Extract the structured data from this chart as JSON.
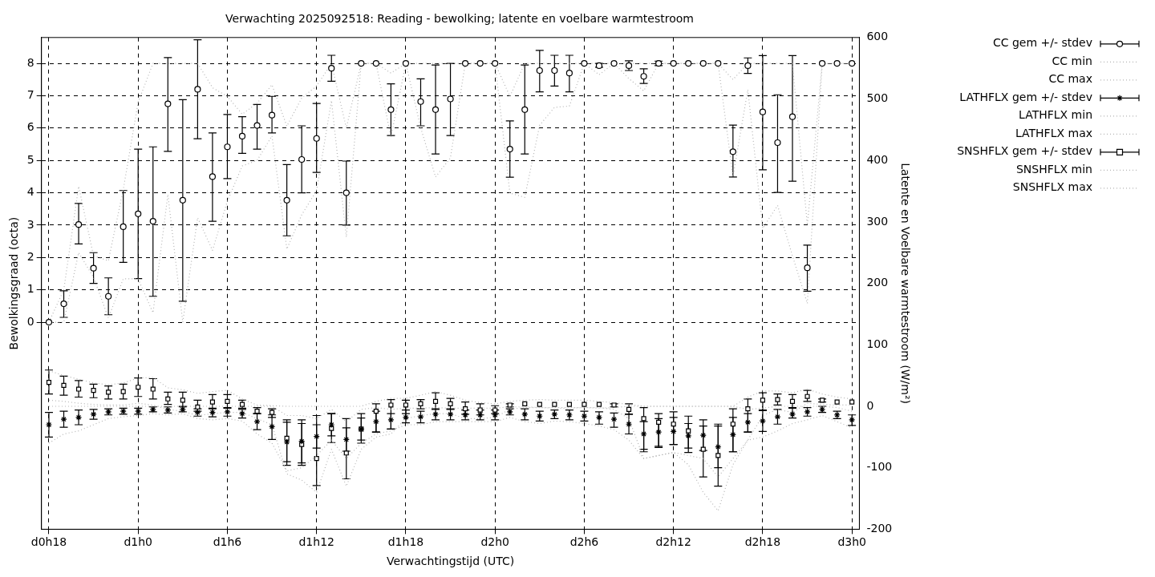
{
  "chart_data": {
    "type": "scatter",
    "title": "Verwachting 2025092518: Reading - bewolking; latente en voelbare warmtestroom",
    "xlabel": "Verwachtingstijd (UTC)",
    "ylabel": "Bewolkingsgraad (octa)",
    "y2label": "Latente en Voelbare warmtestroom (W/m²)",
    "categories": [
      "d0h18",
      null,
      null,
      null,
      null,
      null,
      "d1h0",
      null,
      null,
      null,
      null,
      null,
      "d1h6",
      null,
      null,
      null,
      null,
      null,
      "d1h12",
      null,
      null,
      null,
      null,
      null,
      "d1h18",
      null,
      null,
      null,
      null,
      null,
      "d2h0",
      null,
      null,
      null,
      null,
      null,
      "d2h6",
      null,
      null,
      null,
      null,
      null,
      "d2h12",
      null,
      null,
      null,
      null,
      null,
      "d2h18",
      null,
      null,
      null,
      null,
      null,
      "d3h0"
    ],
    "ylim": [
      -6.4,
      8.8
    ],
    "yticks": [
      0,
      1,
      2,
      3,
      4,
      5,
      6,
      7,
      8
    ],
    "y2lim": [
      -200,
      600
    ],
    "y2ticks": [
      -200,
      -100,
      0,
      100,
      200,
      300,
      400,
      500,
      600
    ],
    "grid": true,
    "legend": "top right",
    "series": [
      {
        "name": "CC gem +/- stdev",
        "marker": "circle",
        "color": "#000000",
        "values": [
          0,
          0.57,
          3.02,
          1.67,
          0.8,
          2.95,
          3.35,
          3.12,
          6.75,
          3.77,
          7.2,
          4.5,
          5.42,
          5.75,
          6.08,
          6.4,
          3.77,
          5.03,
          5.68,
          7.85,
          4.0,
          8,
          8,
          6.57,
          8,
          6.82,
          6.57,
          6.9,
          8,
          8,
          8,
          5.35,
          6.57,
          7.78,
          7.78,
          7.7,
          8,
          7.93,
          8,
          7.93,
          7.6,
          8,
          8,
          8,
          8,
          8,
          5.27,
          7.93,
          6.5,
          5.55,
          6.35,
          1.68,
          8,
          8,
          8
        ],
        "errors": [
          null,
          [
            0.15,
            0.97
          ],
          [
            2.42,
            3.67
          ],
          [
            1.2,
            2.15
          ],
          [
            0.23,
            1.37
          ],
          [
            1.85,
            4.07
          ],
          [
            1.35,
            5.35
          ],
          [
            0.8,
            5.42
          ],
          [
            5.28,
            8.18
          ],
          [
            0.65,
            6.88
          ],
          [
            5.67,
            8.73
          ],
          [
            3.12,
            5.85
          ],
          [
            4.44,
            6.42
          ],
          [
            5.22,
            6.35
          ],
          [
            5.35,
            6.73
          ],
          [
            5.85,
            6.98
          ],
          [
            2.67,
            4.87
          ],
          [
            4.0,
            6.07
          ],
          [
            4.63,
            6.76
          ],
          [
            7.45,
            8.25
          ],
          [
            3.0,
            4.98
          ],
          null,
          null,
          [
            5.77,
            7.37
          ],
          null,
          [
            6.07,
            7.52
          ],
          [
            5.2,
            7.95
          ],
          [
            5.77,
            8.0
          ],
          null,
          null,
          null,
          [
            4.48,
            6.22
          ],
          [
            5.2,
            7.95
          ],
          [
            7.12,
            8.4
          ],
          [
            7.3,
            8.25
          ],
          [
            7.12,
            8.25
          ],
          null,
          [
            7.88,
            8.0
          ],
          null,
          [
            7.78,
            8.08
          ],
          [
            7.38,
            7.83
          ],
          [
            7.93,
            8.07
          ],
          null,
          null,
          null,
          null,
          [
            4.49,
            6.09
          ],
          [
            7.69,
            8.17
          ],
          [
            4.71,
            8.24
          ],
          [
            4.01,
            7.03
          ],
          [
            4.36,
            8.24
          ],
          [
            0.96,
            2.38
          ],
          null,
          null,
          null
        ]
      },
      {
        "name": "CC min",
        "type": "line",
        "line_style": "dotted",
        "marker": "none",
        "color": "#b4b4b4",
        "values": [
          0,
          0,
          2.15,
          1.39,
          0.13,
          1.34,
          1.34,
          0.29,
          3.95,
          0,
          3.23,
          2.22,
          3.74,
          4.83,
          5.0,
          5.76,
          2.26,
          3.32,
          4.07,
          6.85,
          2.63,
          8,
          8,
          5.72,
          8,
          6.01,
          4.49,
          5.08,
          8,
          8,
          8,
          3.99,
          3.86,
          6.09,
          6.64,
          6.68,
          8,
          7.65,
          8,
          7.53,
          7.15,
          8,
          8,
          8,
          8,
          8,
          4.5,
          7.19,
          2.9,
          3.61,
          2.05,
          0.58,
          8,
          8,
          8
        ]
      },
      {
        "name": "CC max",
        "type": "line",
        "line_style": "dotted",
        "marker": "none",
        "color": "#b4b4b4",
        "values": [
          0,
          1.0,
          4.2,
          2.05,
          1.9,
          4.1,
          6.8,
          8,
          8,
          8,
          8,
          7.25,
          6.98,
          6.43,
          6.77,
          7.34,
          6.06,
          6.93,
          7.3,
          8,
          6.0,
          8,
          8,
          7.7,
          8,
          8,
          8,
          8,
          8,
          8,
          8,
          6.98,
          8,
          8,
          8,
          8,
          8,
          8,
          8,
          8,
          8,
          8,
          8,
          8,
          8,
          8,
          7.5,
          8,
          8,
          8,
          8,
          3.0,
          8,
          8,
          8
        ]
      },
      {
        "name": "LATHFLX gem +/- stdev",
        "axis": "y2",
        "marker": "cross",
        "color": "#000000",
        "values": [
          -30,
          -21,
          -18,
          -13,
          -9,
          -8,
          -8,
          -5,
          -6,
          -5,
          -10,
          -10,
          -9,
          -12,
          -25,
          -33,
          -58,
          -57,
          -49,
          -30,
          -54,
          -37,
          -25,
          -22,
          -18,
          -17,
          -13,
          -13,
          -14,
          -14,
          -14,
          -9,
          -13,
          -16,
          -13,
          -14,
          -16,
          -18,
          -21,
          -29,
          -45,
          -42,
          -41,
          -48,
          -47,
          -66,
          -46,
          -26,
          -24,
          -17,
          -13,
          -9,
          -5,
          -14,
          -22
        ],
        "errors": [
          [
            -50,
            -10
          ],
          [
            -34,
            -8
          ],
          [
            -30,
            -6
          ],
          [
            -21,
            -5
          ],
          [
            -14,
            -4
          ],
          [
            -13,
            -3
          ],
          [
            -13,
            -3
          ],
          [
            -9,
            -1
          ],
          [
            -11,
            -1
          ],
          [
            -9,
            -1
          ],
          [
            -16,
            -4
          ],
          [
            -17,
            -3
          ],
          [
            -16,
            -2
          ],
          [
            -19,
            -5
          ],
          [
            -38,
            -12
          ],
          [
            -54,
            -14
          ],
          [
            -90,
            -26
          ],
          [
            -92,
            -22
          ],
          [
            -68,
            -30
          ],
          [
            -48,
            -12
          ],
          [
            -73,
            -35
          ],
          [
            -55,
            -19
          ],
          [
            -42,
            -8
          ],
          [
            -37,
            -12
          ],
          [
            -27,
            -6
          ],
          [
            -27,
            -8
          ],
          [
            -22,
            -4
          ],
          [
            -22,
            -4
          ],
          [
            -22,
            -6
          ],
          [
            -22,
            -6
          ],
          [
            -22,
            -6
          ],
          [
            -14,
            -4
          ],
          [
            -22,
            -4
          ],
          [
            -24,
            -8
          ],
          [
            -20,
            -6
          ],
          [
            -22,
            -6
          ],
          [
            -24,
            -8
          ],
          [
            -29,
            -9
          ],
          [
            -34,
            -11
          ],
          [
            -45,
            -13
          ],
          [
            -70,
            -25
          ],
          [
            -65,
            -20
          ],
          [
            -62,
            -18
          ],
          [
            -68,
            -28
          ],
          [
            -72,
            -22
          ],
          [
            -100,
            -32
          ],
          [
            -74,
            -18
          ],
          [
            -42,
            -12
          ],
          [
            -41,
            -7
          ],
          [
            -29,
            -5
          ],
          [
            -19,
            -2
          ],
          [
            -16,
            -2
          ],
          [
            -10,
            0
          ],
          [
            -20,
            -8
          ],
          [
            -31,
            -14
          ]
        ]
      },
      {
        "name": "LATHFLX min",
        "type": "line",
        "axis": "y2",
        "line_style": "dotted",
        "marker": "none",
        "color": "#b4b4b4",
        "values": [
          -60,
          -45,
          -40,
          -30,
          -20,
          -17,
          -15,
          -12,
          -14,
          -12,
          -20,
          -22,
          -20,
          -24,
          -45,
          -60,
          -105,
          -100,
          -80,
          -55,
          -85,
          -60,
          -45,
          -40,
          -30,
          -30,
          -25,
          -25,
          -25,
          -25,
          -25,
          -18,
          -25,
          -28,
          -24,
          -25,
          -28,
          -32,
          -38,
          -55,
          -85,
          -80,
          -75,
          -80,
          -85,
          -115,
          -85,
          -55,
          -50,
          -40,
          -28,
          -22,
          -15,
          -25,
          -35
        ]
      },
      {
        "name": "LATHFLX max",
        "type": "line",
        "axis": "y2",
        "line_style": "dotted",
        "marker": "none",
        "color": "#b4b4b4",
        "values": [
          0,
          0,
          0,
          0,
          0,
          0,
          0,
          0,
          0,
          0,
          0,
          0,
          0,
          0,
          0,
          0,
          -15,
          -15,
          -20,
          -5,
          -25,
          -5,
          -2,
          -5,
          -3,
          -3,
          -2,
          -3,
          -3,
          -3,
          -3,
          -1,
          -1,
          -2,
          -3,
          -3,
          -2,
          -3,
          -2,
          0,
          0,
          0,
          0,
          0,
          0,
          0,
          0,
          -5,
          -3,
          0,
          0,
          0,
          0,
          -2,
          -8
        ]
      },
      {
        "name": "SNSHFLX gem +/- stdev",
        "axis": "y2",
        "marker": "square",
        "color": "#000000",
        "values": [
          39,
          34,
          28,
          26,
          23,
          24,
          31,
          28,
          12,
          10,
          -1,
          7,
          8,
          3,
          -8,
          -10,
          -52,
          -62,
          -85,
          -36,
          -76,
          -37,
          -8,
          2,
          2,
          4,
          8,
          4,
          -4,
          -6,
          -6,
          2,
          4,
          3,
          3,
          3,
          3,
          3,
          2,
          -5,
          -20,
          -26,
          -29,
          -40,
          -70,
          -80,
          -29,
          -4,
          10,
          11,
          8,
          16,
          10,
          7,
          7
        ],
        "errors": [
          [
            20,
            59
          ],
          [
            18,
            49
          ],
          [
            15,
            42
          ],
          [
            14,
            36
          ],
          [
            12,
            33
          ],
          [
            12,
            36
          ],
          [
            16,
            46
          ],
          [
            12,
            45
          ],
          [
            3,
            23
          ],
          [
            0,
            23
          ],
          [
            -8,
            10
          ],
          [
            -4,
            19
          ],
          [
            -3,
            19
          ],
          [
            -3,
            10
          ],
          [
            -12,
            -2
          ],
          [
            -18,
            -4
          ],
          [
            -96,
            -22
          ],
          [
            -96,
            -28
          ],
          [
            -129,
            -15
          ],
          [
            -59,
            -12
          ],
          [
            -118,
            -20
          ],
          [
            -60,
            -12
          ],
          [
            -42,
            4
          ],
          [
            -37,
            11
          ],
          [
            -12,
            10
          ],
          [
            -4,
            11
          ],
          [
            -5,
            22
          ],
          [
            -5,
            13
          ],
          [
            -13,
            7
          ],
          [
            -14,
            4
          ],
          [
            -12,
            1
          ],
          [
            -1,
            4
          ],
          null,
          null,
          null,
          null,
          null,
          null,
          [
            -1,
            4
          ],
          [
            -13,
            4
          ],
          [
            -74,
            -2
          ],
          [
            -67,
            -12
          ],
          [
            -62,
            -9
          ],
          [
            -75,
            -16
          ],
          [
            -115,
            -32
          ],
          [
            -130,
            -29
          ],
          [
            -74,
            -4
          ],
          [
            -42,
            12
          ],
          [
            -6,
            22
          ],
          [
            2,
            20
          ],
          [
            -3,
            19
          ],
          [
            8,
            26
          ],
          [
            7,
            12
          ],
          null,
          null
        ]
      },
      {
        "name": "SNSHFLX min",
        "type": "line",
        "axis": "y2",
        "line_style": "dotted",
        "marker": "none",
        "color": "#b4b4b4",
        "values": [
          10,
          8,
          5,
          3,
          2,
          2,
          5,
          2,
          -5,
          -8,
          -15,
          -12,
          -10,
          -10,
          -20,
          -30,
          -110,
          -120,
          -140,
          -70,
          -130,
          -70,
          -50,
          -45,
          -20,
          -15,
          -12,
          -12,
          -20,
          -20,
          -18,
          -5,
          -2,
          -2,
          -2,
          -2,
          -2,
          -2,
          -5,
          -20,
          -85,
          -80,
          -75,
          -95,
          -140,
          -170,
          -95,
          -55,
          -15,
          -5,
          -10,
          5,
          3,
          2,
          2
        ]
      },
      {
        "name": "SNSHFLX max",
        "type": "line",
        "axis": "y2",
        "line_style": "dotted",
        "marker": "none",
        "color": "#b4b4b4",
        "values": [
          58,
          50,
          44,
          38,
          35,
          38,
          46,
          47,
          30,
          27,
          21,
          24,
          26,
          12,
          2,
          1,
          0,
          0,
          0,
          0,
          0,
          0,
          8,
          13,
          13,
          18,
          24,
          18,
          10,
          6,
          4,
          8,
          10,
          11,
          10,
          10,
          10,
          8,
          6,
          3,
          0,
          0,
          0,
          0,
          0,
          0,
          0,
          15,
          25,
          25,
          22,
          28,
          20,
          15,
          12
        ]
      }
    ]
  }
}
